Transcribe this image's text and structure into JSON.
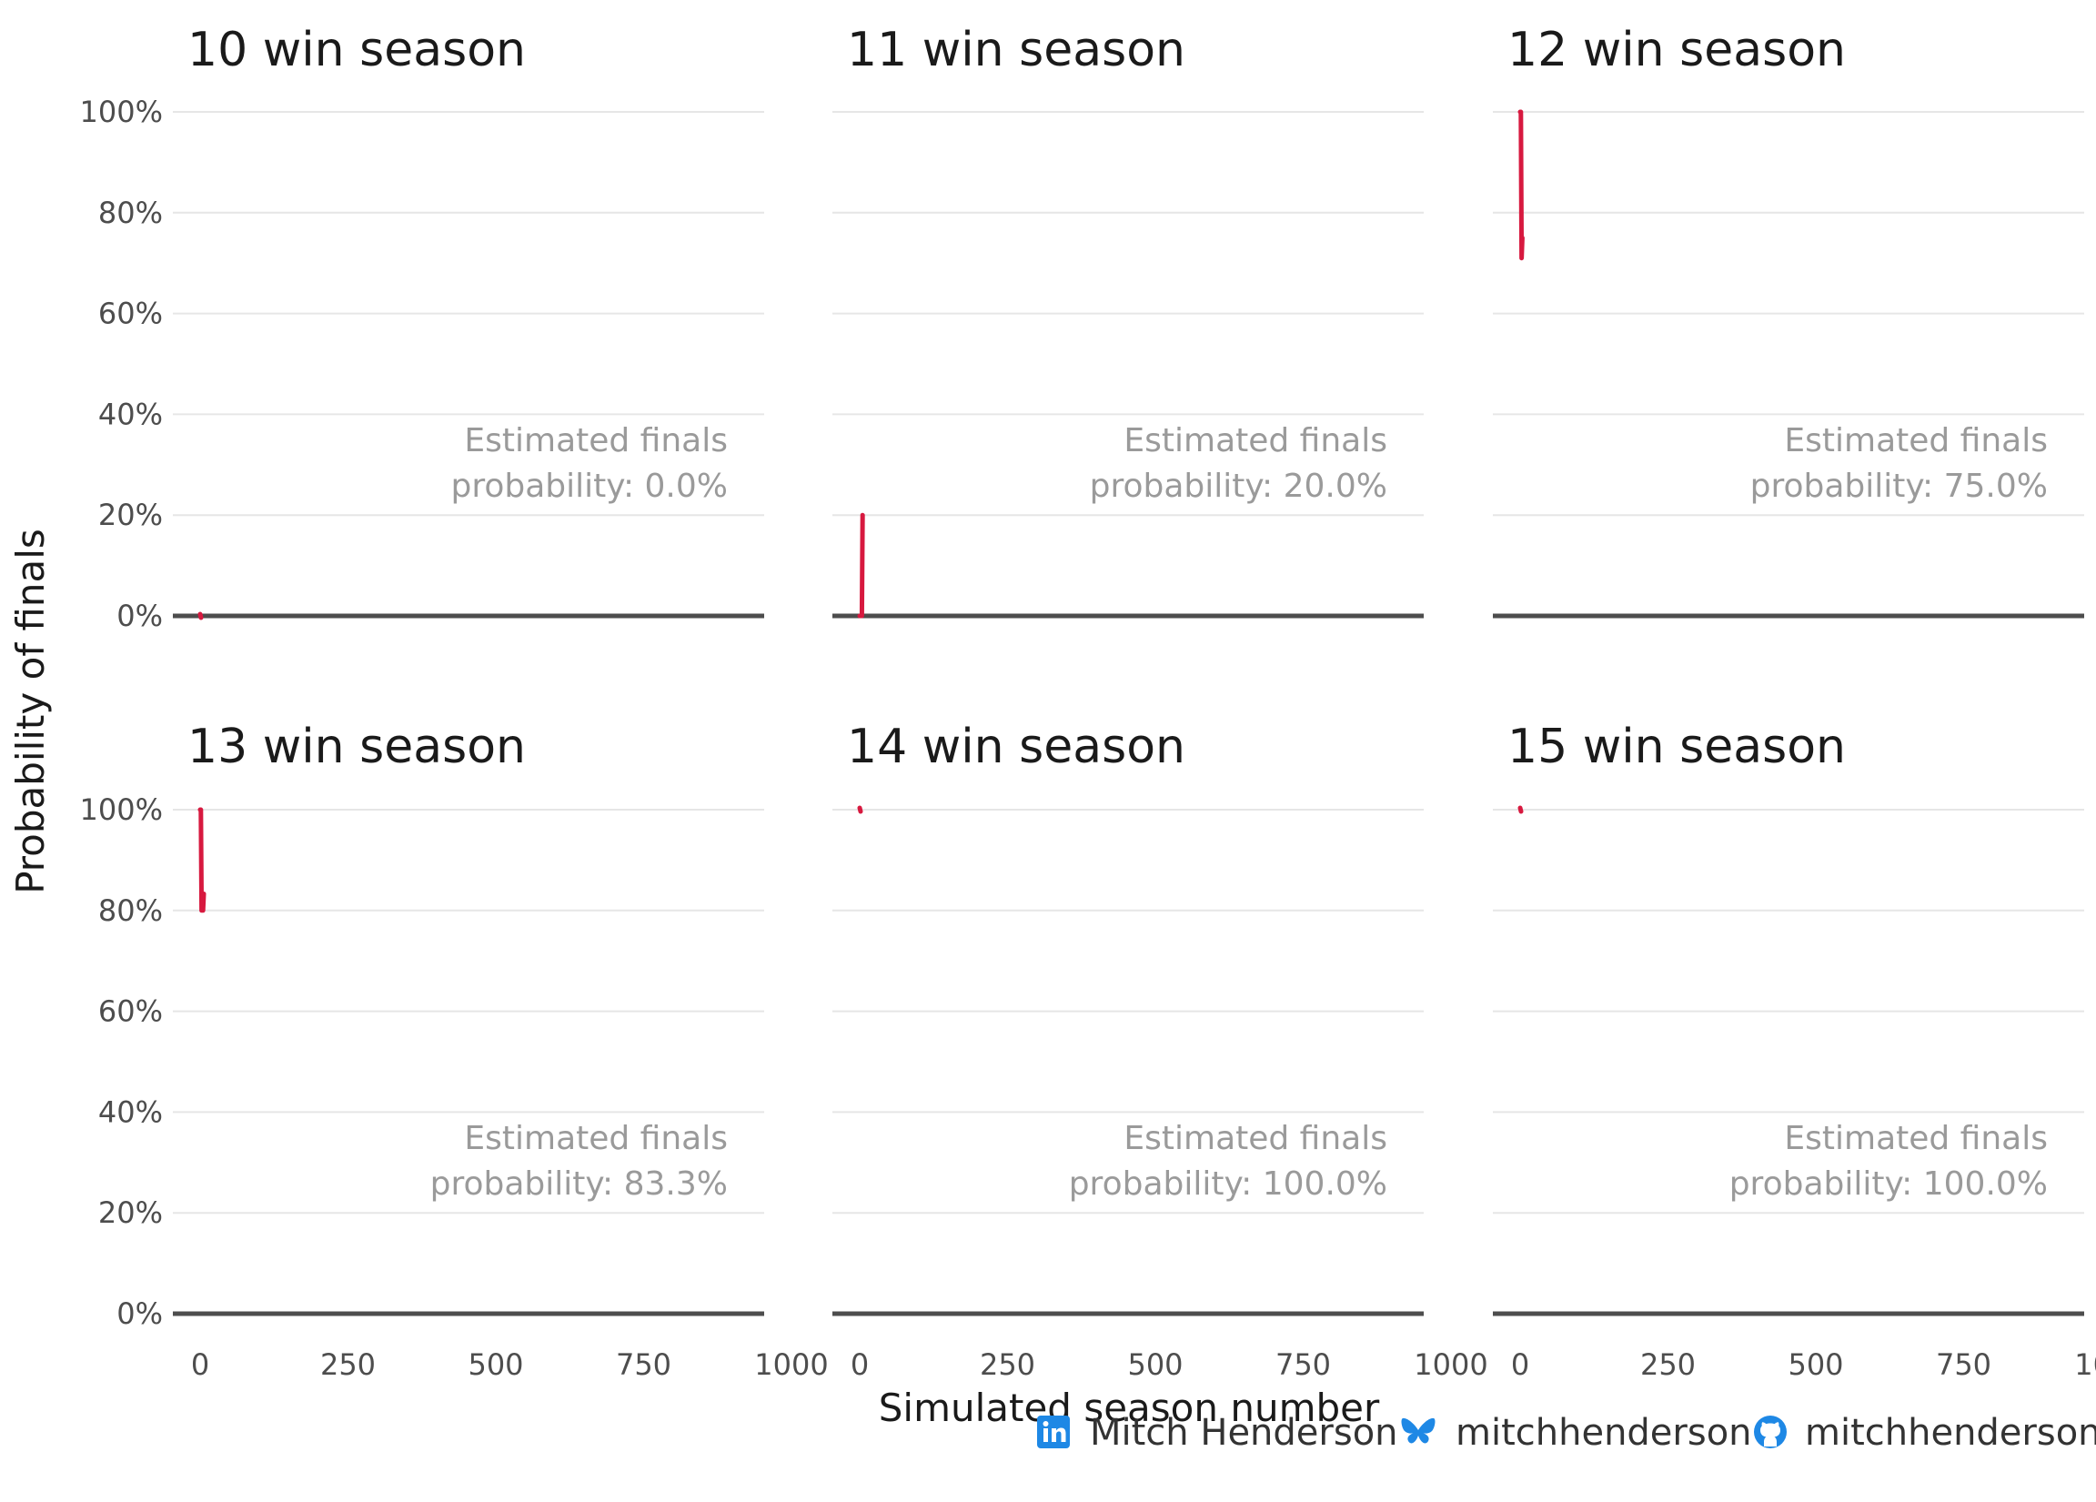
{
  "chart_data": {
    "type": "line",
    "xlabel": "Simulated season number",
    "ylabel": "Probability of finals",
    "xlim": [
      0,
      1000
    ],
    "ylim": [
      0,
      1
    ],
    "x_ticks": [
      "0",
      "250",
      "500",
      "750",
      "1000"
    ],
    "y_ticks": [
      "0%",
      "20%",
      "40%",
      "60%",
      "80%",
      "100%"
    ],
    "grid": true,
    "series_color": "#d7193f",
    "panels": [
      {
        "title": "10 win season",
        "annotation_line1": "Estimated finals",
        "annotation_line2": "probability: 0.0%",
        "x": [
          1,
          2,
          3,
          4
        ],
        "y": [
          0.0,
          0.0,
          0.0,
          0.0
        ]
      },
      {
        "title": "11 win season",
        "annotation_line1": "Estimated finals",
        "annotation_line2": "probability: 20.0%",
        "x": [
          1,
          2,
          3,
          4,
          5
        ],
        "y": [
          0.0,
          0.0,
          0.0,
          0.0,
          0.2
        ]
      },
      {
        "title": "12 win season",
        "annotation_line1": "Estimated finals",
        "annotation_line2": "probability: 75.0%",
        "x": [
          1,
          2,
          3,
          4
        ],
        "y": [
          1.0,
          1.0,
          0.71,
          0.75
        ]
      },
      {
        "title": "13 win season",
        "annotation_line1": "Estimated finals",
        "annotation_line2": "probability: 83.3%",
        "x": [
          1,
          2,
          3,
          4,
          5,
          6
        ],
        "y": [
          1.0,
          1.0,
          0.8,
          0.8,
          0.8,
          0.833
        ]
      },
      {
        "title": "14 win season",
        "annotation_line1": "Estimated finals",
        "annotation_line2": "probability: 100.0%",
        "x": [
          1,
          2,
          3
        ],
        "y": [
          1.0,
          1.0,
          1.0
        ]
      },
      {
        "title": "15 win season",
        "annotation_line1": "Estimated finals",
        "annotation_line2": "probability: 100.0%",
        "x": [
          1,
          2
        ],
        "y": [
          1.0,
          1.0
        ]
      }
    ]
  },
  "credits": [
    {
      "icon": "linkedin-icon",
      "label": "Mitch Henderson",
      "color": "#1e88e5"
    },
    {
      "icon": "bluesky-icon",
      "label": "mitchhenderson",
      "color": "#1e88e5"
    },
    {
      "icon": "github-icon",
      "label": "mitchhenderson",
      "color": "#1e88e5"
    }
  ]
}
